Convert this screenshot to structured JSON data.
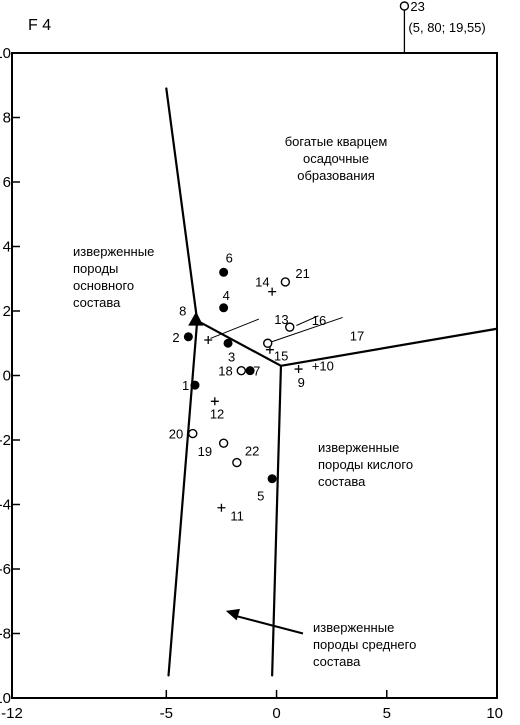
{
  "chart_data": {
    "type": "scatter",
    "title": "",
    "ylabel": "F 4",
    "xlabel": "",
    "xlim": [
      -12,
      10
    ],
    "ylim": [
      -10,
      10
    ],
    "xticks": [
      "-12",
      "-5",
      "0",
      "5",
      "10"
    ],
    "xtick_values": [
      -12,
      -5,
      0,
      5,
      10
    ],
    "yticks": [
      "10",
      "8",
      "6",
      "4",
      "2",
      "0",
      "-2",
      "-4",
      "-6",
      "-8",
      "-10"
    ],
    "ytick_values": [
      10,
      8,
      6,
      4,
      2,
      0,
      -2,
      -4,
      -6,
      -8,
      -10
    ],
    "grid": false,
    "boundaries": [
      {
        "from": [
          -5.0,
          8.9
        ],
        "to": [
          -3.6,
          1.7
        ]
      },
      {
        "from": [
          -3.6,
          1.7
        ],
        "to": [
          -4.9,
          -9.3
        ]
      },
      {
        "from": [
          -3.6,
          1.7
        ],
        "to": [
          0.2,
          0.3
        ]
      },
      {
        "from": [
          0.2,
          0.3
        ],
        "to": [
          -0.2,
          -9.3
        ]
      },
      {
        "from": [
          0.2,
          0.3
        ],
        "to": [
          10.0,
          1.45
        ]
      }
    ],
    "points": [
      {
        "label": "1",
        "x": -3.7,
        "y": -0.3,
        "marker": "filled"
      },
      {
        "label": "2",
        "x": -4.0,
        "y": 1.2,
        "marker": "filled"
      },
      {
        "label": "3",
        "x": -2.2,
        "y": 1.0,
        "marker": "filled"
      },
      {
        "label": "4",
        "x": -2.4,
        "y": 2.1,
        "marker": "filled"
      },
      {
        "label": "5",
        "x": -0.2,
        "y": -3.2,
        "marker": "filled"
      },
      {
        "label": "6",
        "x": -2.4,
        "y": 3.2,
        "marker": "filled"
      },
      {
        "label": "7",
        "x": -1.2,
        "y": 0.15,
        "marker": "filled"
      },
      {
        "label": "8",
        "x": -3.6,
        "y": 1.7,
        "marker": "triangle"
      },
      {
        "label": "9",
        "x": 1.0,
        "y": 0.2,
        "marker": "plus"
      },
      {
        "label": "+10",
        "x": 1.6,
        "y": 0.15,
        "marker": "text"
      },
      {
        "label": "11",
        "x": -2.5,
        "y": -4.1,
        "marker": "plus"
      },
      {
        "label": "12",
        "x": -2.8,
        "y": -0.8,
        "marker": "plus"
      },
      {
        "label": "13",
        "x": -3.1,
        "y": 1.1,
        "marker": "plus"
      },
      {
        "label": "14",
        "x": -0.2,
        "y": 2.6,
        "marker": "plus"
      },
      {
        "label": "15",
        "x": -0.3,
        "y": 0.8,
        "marker": "plus"
      },
      {
        "label": "16",
        "x": 0.6,
        "y": 1.5,
        "marker": "open"
      },
      {
        "label": "17",
        "x": -0.4,
        "y": 1.0,
        "marker": "open"
      },
      {
        "label": "18",
        "x": -1.6,
        "y": 0.15,
        "marker": "open"
      },
      {
        "label": "19",
        "x": -2.4,
        "y": -2.1,
        "marker": "open"
      },
      {
        "label": "20",
        "x": -3.8,
        "y": -1.8,
        "marker": "open"
      },
      {
        "label": "21",
        "x": 0.4,
        "y": 2.9,
        "marker": "open"
      },
      {
        "label": "22",
        "x": -1.8,
        "y": -2.7,
        "marker": "open"
      }
    ],
    "leaders": [
      {
        "label": "13",
        "from": [
          -3.0,
          1.15
        ],
        "to": [
          -0.8,
          1.75
        ]
      },
      {
        "label": "16",
        "from": [
          0.9,
          1.55
        ],
        "to": [
          1.9,
          1.85
        ]
      },
      {
        "label": "17",
        "from": [
          -0.2,
          1.05
        ],
        "to": [
          3.0,
          1.8
        ]
      }
    ],
    "outlier": {
      "label": "23",
      "coords_text": "(5, 80; 19,55)",
      "x": 5.8,
      "marker": "open"
    },
    "regions": [
      {
        "lines": [
          "богатые кварцем",
          "осадочные",
          "образования"
        ]
      },
      {
        "lines": [
          "изверженные",
          "породы",
          "основного",
          "состава"
        ]
      },
      {
        "lines": [
          "изверженные",
          "породы кислого",
          "состава"
        ]
      },
      {
        "lines": [
          "изверженные",
          "породы среднего",
          "состава"
        ]
      }
    ],
    "arrow": {
      "from": [
        1.2,
        -8.0
      ],
      "to": [
        -2.3,
        -7.3
      ]
    }
  }
}
